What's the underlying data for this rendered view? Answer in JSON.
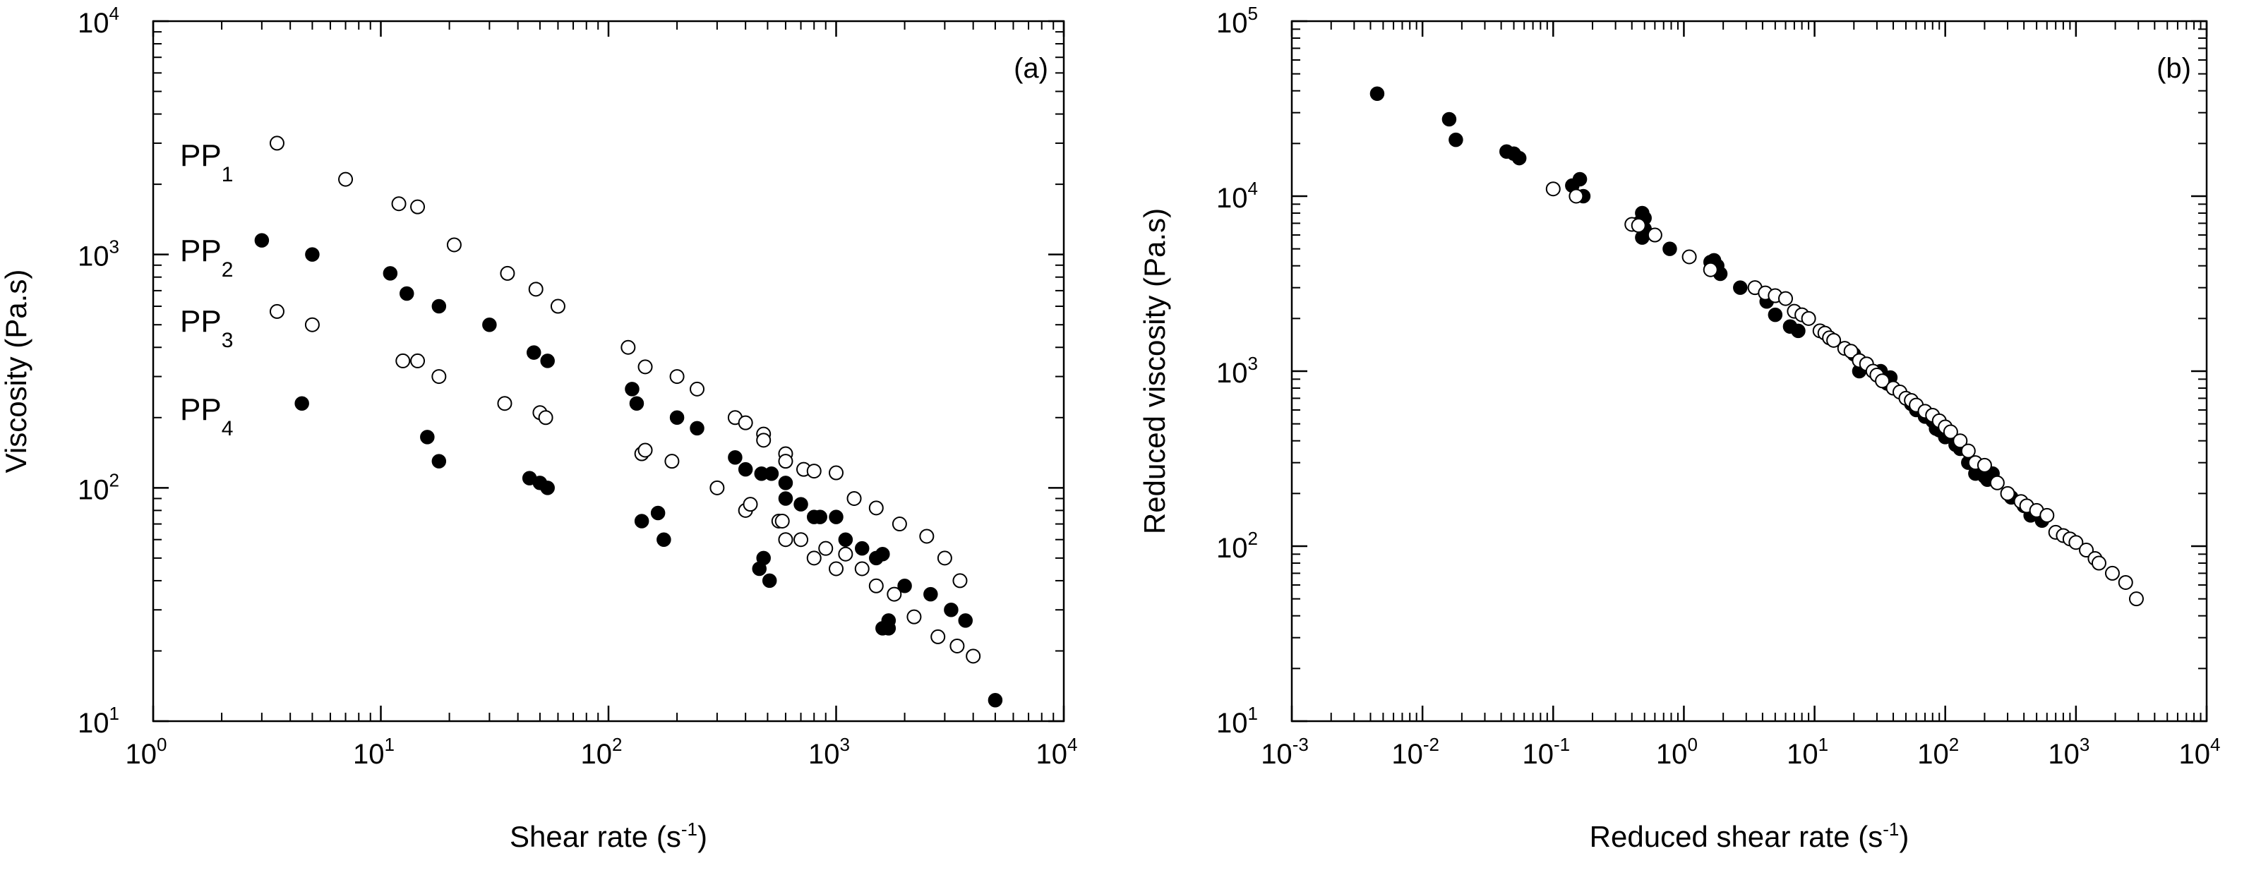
{
  "chart_data": [
    {
      "panel": "a",
      "panel_label": "(a)",
      "type": "scatter",
      "xscale": "log",
      "yscale": "log",
      "xlim": [
        1,
        10000
      ],
      "ylim": [
        10,
        10000
      ],
      "xlabel": "Shear rate (s",
      "xlabel_unit_exp": "-1",
      "xlabel_end": ")",
      "ylabel": "Viscosity (Pa.s)",
      "xticks": [
        {
          "base": "10",
          "exp": "0"
        },
        {
          "base": "10",
          "exp": "1"
        },
        {
          "base": "10",
          "exp": "2"
        },
        {
          "base": "10",
          "exp": "3"
        },
        {
          "base": "10",
          "exp": "4"
        }
      ],
      "yticks": [
        {
          "base": "10",
          "exp": "1"
        },
        {
          "base": "10",
          "exp": "2"
        },
        {
          "base": "10",
          "exp": "3"
        },
        {
          "base": "10",
          "exp": "4"
        }
      ],
      "series": [
        {
          "name": "PP",
          "sub": "1",
          "marker": "open",
          "points": [
            [
              3.5,
              3000
            ],
            [
              7,
              2100
            ],
            [
              12,
              1650
            ],
            [
              14.5,
              1600
            ],
            [
              21,
              1100
            ],
            [
              36,
              830
            ],
            [
              48,
              710
            ],
            [
              60,
              600
            ],
            [
              122,
              400
            ],
            [
              145,
              330
            ],
            [
              200,
              300
            ],
            [
              245,
              265
            ],
            [
              360,
              200
            ],
            [
              400,
              190
            ],
            [
              480,
              170
            ],
            [
              480,
              160
            ],
            [
              600,
              140
            ],
            [
              600,
              130
            ],
            [
              720,
              120
            ],
            [
              800,
              118
            ],
            [
              1000,
              116
            ],
            [
              1200,
              90
            ],
            [
              1500,
              82
            ],
            [
              1900,
              70
            ],
            [
              2500,
              62
            ],
            [
              3000,
              50
            ],
            [
              3500,
              40
            ]
          ]
        },
        {
          "name": "PP",
          "sub": "2",
          "marker": "filled",
          "points": [
            [
              3,
              1150
            ],
            [
              5,
              1000
            ],
            [
              11,
              830
            ],
            [
              13,
              680
            ],
            [
              18,
              600
            ],
            [
              30,
              500
            ],
            [
              47,
              380
            ],
            [
              54,
              350
            ],
            [
              127,
              265
            ],
            [
              133,
              230
            ],
            [
              200,
              200
            ],
            [
              245,
              180
            ],
            [
              360,
              135
            ],
            [
              400,
              120
            ],
            [
              470,
              115
            ],
            [
              520,
              115
            ],
            [
              600,
              105
            ],
            [
              600,
              90
            ],
            [
              700,
              85
            ],
            [
              800,
              75
            ],
            [
              850,
              75
            ],
            [
              1000,
              75
            ],
            [
              1100,
              60
            ],
            [
              1300,
              55
            ],
            [
              1500,
              50
            ],
            [
              1600,
              52
            ],
            [
              2000,
              38
            ],
            [
              2600,
              35
            ],
            [
              3200,
              30
            ],
            [
              3700,
              27
            ]
          ]
        },
        {
          "name": "PP",
          "sub": "3",
          "marker": "open",
          "points": [
            [
              3.5,
              570
            ],
            [
              5,
              500
            ],
            [
              12.5,
              350
            ],
            [
              14.5,
              350
            ],
            [
              18,
              300
            ],
            [
              35,
              230
            ],
            [
              50,
              210
            ],
            [
              53,
              200
            ],
            [
              140,
              140
            ],
            [
              145,
              145
            ],
            [
              190,
              130
            ],
            [
              300,
              100
            ],
            [
              400,
              80
            ],
            [
              420,
              85
            ],
            [
              560,
              72
            ],
            [
              580,
              72
            ],
            [
              600,
              60
            ],
            [
              700,
              60
            ],
            [
              800,
              50
            ],
            [
              900,
              55
            ],
            [
              1000,
              45
            ],
            [
              1100,
              52
            ],
            [
              1300,
              45
            ],
            [
              1500,
              38
            ],
            [
              1800,
              35
            ],
            [
              2200,
              28
            ],
            [
              2800,
              23
            ],
            [
              3400,
              21
            ],
            [
              4000,
              19
            ]
          ]
        },
        {
          "name": "PP",
          "sub": "4",
          "marker": "filled",
          "points": [
            [
              4.5,
              230
            ],
            [
              16,
              165
            ],
            [
              18,
              130
            ],
            [
              45,
              110
            ],
            [
              50,
              105
            ],
            [
              54,
              100
            ],
            [
              140,
              72
            ],
            [
              165,
              78
            ],
            [
              175,
              60
            ],
            [
              460,
              45
            ],
            [
              480,
              50
            ],
            [
              510,
              40
            ],
            [
              1600,
              25
            ],
            [
              1700,
              27
            ],
            [
              1700,
              25
            ],
            [
              5000,
              12.3
            ]
          ]
        }
      ]
    },
    {
      "panel": "b",
      "panel_label": "(b)",
      "type": "scatter",
      "xscale": "log",
      "yscale": "log",
      "xlim": [
        0.001,
        10000
      ],
      "ylim": [
        10,
        100000
      ],
      "xlabel": "Reduced shear rate (s",
      "xlabel_unit_exp": "-1",
      "xlabel_end": ")",
      "ylabel": "Reduced viscosity (Pa.s)",
      "xticks": [
        {
          "base": "10",
          "exp": "-3"
        },
        {
          "base": "10",
          "exp": "-2"
        },
        {
          "base": "10",
          "exp": "-1"
        },
        {
          "base": "10",
          "exp": "0"
        },
        {
          "base": "10",
          "exp": "1"
        },
        {
          "base": "10",
          "exp": "2"
        },
        {
          "base": "10",
          "exp": "3"
        },
        {
          "base": "10",
          "exp": "4"
        }
      ],
      "yticks": [
        {
          "base": "10",
          "exp": "1"
        },
        {
          "base": "10",
          "exp": "2"
        },
        {
          "base": "10",
          "exp": "3"
        },
        {
          "base": "10",
          "exp": "4"
        },
        {
          "base": "10",
          "exp": "5"
        }
      ],
      "series": [
        {
          "name": "filled",
          "marker": "filled",
          "points": [
            [
              0.0045,
              38500
            ],
            [
              0.016,
              27500
            ],
            [
              0.018,
              21000
            ],
            [
              0.044,
              18000
            ],
            [
              0.05,
              17500
            ],
            [
              0.055,
              16500
            ],
            [
              0.14,
              11500
            ],
            [
              0.16,
              12500
            ],
            [
              0.17,
              10000
            ],
            [
              0.45,
              7000
            ],
            [
              0.48,
              8000
            ],
            [
              0.5,
              7500
            ],
            [
              0.5,
              6500
            ],
            [
              0.48,
              5800
            ],
            [
              0.78,
              5000
            ],
            [
              1.6,
              4200
            ],
            [
              1.7,
              4300
            ],
            [
              1.8,
              4000
            ],
            [
              1.9,
              3600
            ],
            [
              2.7,
              3000
            ],
            [
              4.3,
              2500
            ],
            [
              5,
              2100
            ],
            [
              6.5,
              1800
            ],
            [
              7.5,
              1700
            ],
            [
              20,
              1250
            ],
            [
              22,
              1000
            ],
            [
              32,
              1000
            ],
            [
              36,
              850
            ],
            [
              38,
              920
            ],
            [
              50,
              700
            ],
            [
              55,
              650
            ],
            [
              60,
              600
            ],
            [
              70,
              550
            ],
            [
              80,
              520
            ],
            [
              85,
              470
            ],
            [
              90,
              460
            ],
            [
              100,
              420
            ],
            [
              120,
              380
            ],
            [
              130,
              360
            ],
            [
              150,
              300
            ],
            [
              170,
              260
            ],
            [
              200,
              250
            ],
            [
              210,
              240
            ],
            [
              230,
              260
            ],
            [
              320,
              190
            ],
            [
              400,
              170
            ],
            [
              450,
              150
            ],
            [
              550,
              140
            ]
          ]
        },
        {
          "name": "open",
          "marker": "open",
          "points": [
            [
              0.1,
              11000
            ],
            [
              0.15,
              10000
            ],
            [
              0.4,
              6900
            ],
            [
              0.45,
              6800
            ],
            [
              0.6,
              6000
            ],
            [
              1.1,
              4500
            ],
            [
              1.6,
              3800
            ],
            [
              3.5,
              3000
            ],
            [
              4.2,
              2800
            ],
            [
              5,
              2700
            ],
            [
              6,
              2600
            ],
            [
              7,
              2200
            ],
            [
              8,
              2100
            ],
            [
              9,
              2000
            ],
            [
              11,
              1700
            ],
            [
              12,
              1650
            ],
            [
              13,
              1550
            ],
            [
              14,
              1500
            ],
            [
              17,
              1350
            ],
            [
              19,
              1300
            ],
            [
              22,
              1150
            ],
            [
              25,
              1100
            ],
            [
              28,
              1000
            ],
            [
              30,
              950
            ],
            [
              33,
              880
            ],
            [
              40,
              800
            ],
            [
              45,
              760
            ],
            [
              50,
              700
            ],
            [
              55,
              680
            ],
            [
              60,
              640
            ],
            [
              70,
              590
            ],
            [
              80,
              560
            ],
            [
              90,
              520
            ],
            [
              100,
              480
            ],
            [
              110,
              450
            ],
            [
              130,
              400
            ],
            [
              150,
              350
            ],
            [
              170,
              300
            ],
            [
              200,
              290
            ],
            [
              250,
              230
            ],
            [
              300,
              200
            ],
            [
              380,
              180
            ],
            [
              420,
              170
            ],
            [
              500,
              160
            ],
            [
              600,
              150
            ],
            [
              700,
              120
            ],
            [
              800,
              115
            ],
            [
              900,
              110
            ],
            [
              1000,
              105
            ],
            [
              1200,
              95
            ],
            [
              1400,
              85
            ],
            [
              1500,
              80
            ],
            [
              1900,
              70
            ],
            [
              2400,
              62
            ],
            [
              2900,
              50
            ]
          ]
        }
      ]
    }
  ]
}
